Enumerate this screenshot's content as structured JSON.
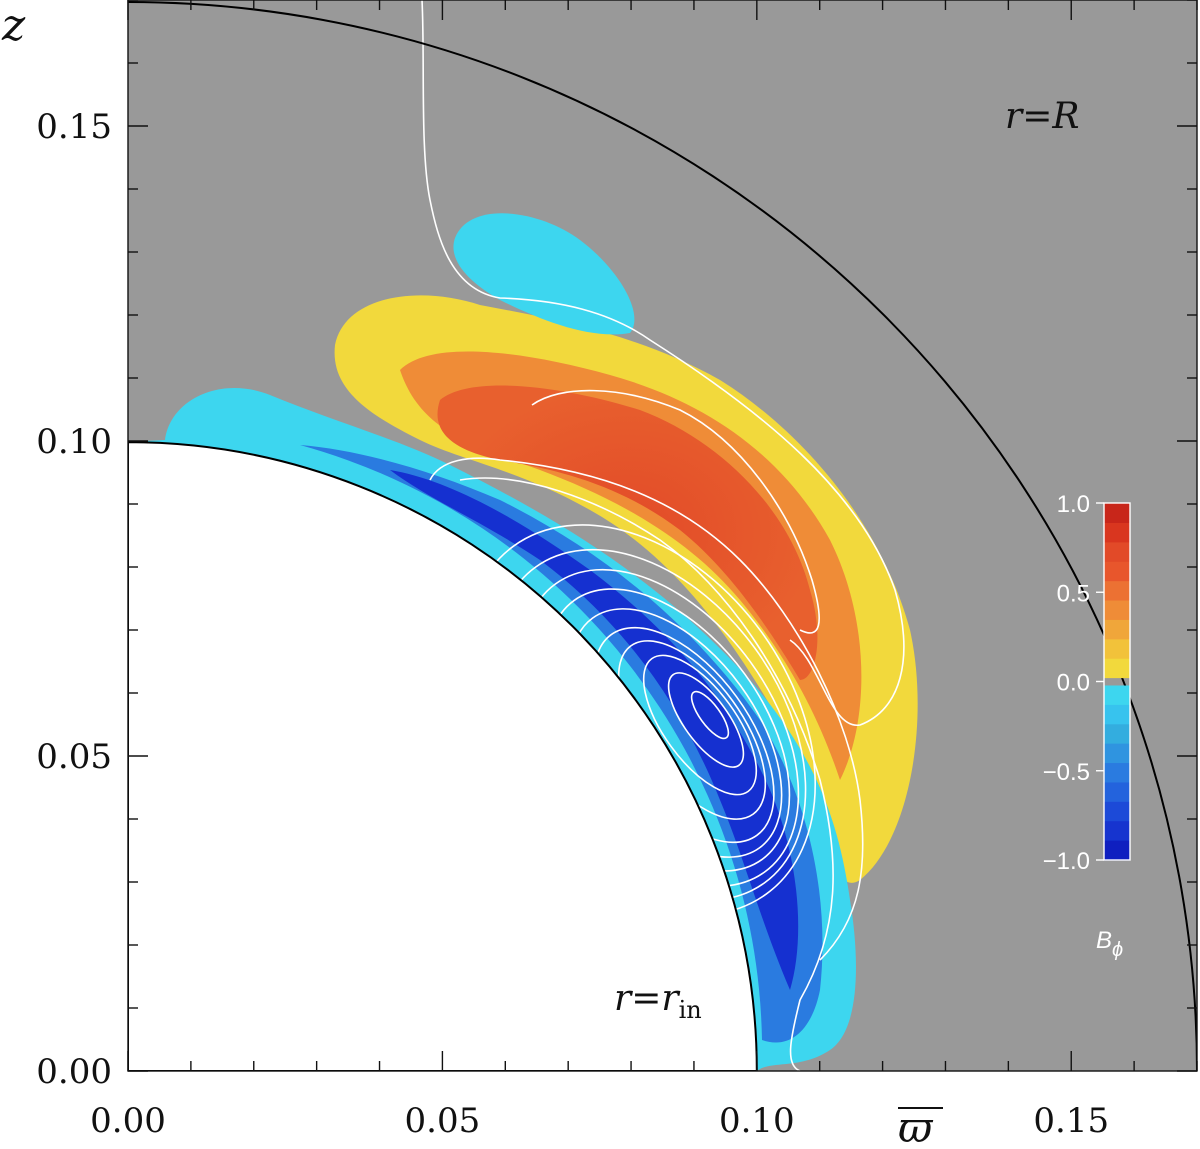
{
  "chart_data": {
    "type": "heatmap",
    "title": "",
    "xlabel": "ϖ",
    "ylabel": "z",
    "xlim": [
      0.0,
      0.17
    ],
    "ylim": [
      0.0,
      0.17
    ],
    "x_ticks": [
      "0.00",
      "0.05",
      "0.10",
      "0.15"
    ],
    "y_ticks": [
      "0.00",
      "0.05",
      "0.10",
      "0.15"
    ],
    "x_tick_values": [
      0.0,
      0.05,
      0.1,
      0.15
    ],
    "y_tick_values": [
      0.0,
      0.05,
      0.1,
      0.15
    ],
    "minor_tick_step": 0.01,
    "inner_radius": 0.1,
    "outer_radius": 0.17,
    "annotations": {
      "outer": {
        "r": "r",
        "eq": "=",
        "rhs": "R"
      },
      "inner": {
        "r": "r",
        "eq": "=",
        "rhs": "r",
        "sub": "in"
      }
    },
    "colorbar": {
      "label_main": "B",
      "label_sub": "ϕ",
      "range": [
        -1.0,
        1.0
      ],
      "tick_labels": [
        "1.0",
        "0.5",
        "0.0",
        "−0.5",
        "−1.0"
      ],
      "tick_values": [
        1.0,
        0.5,
        0.0,
        -0.5,
        -1.0
      ],
      "positive_colors": [
        "#f2d93c",
        "#f2c23a",
        "#f0a63a",
        "#ef8c37",
        "#ec7133",
        "#e8562c",
        "#e24a28",
        "#d9361f",
        "#c8261a"
      ],
      "negative_colors": [
        "#3dd6ef",
        "#37c3ee",
        "#33addf",
        "#2f94e0",
        "#2a7be0",
        "#2363dd",
        "#1c4ad8",
        "#1634cf",
        "#0f1fc0"
      ]
    },
    "colors": {
      "background": "#999999",
      "positive_outer": "#f2d93c",
      "positive_core": "#e24a28",
      "negative_outer": "#3dd6ef",
      "negative_core": "#1530d0",
      "contour": "#ffffff"
    }
  }
}
